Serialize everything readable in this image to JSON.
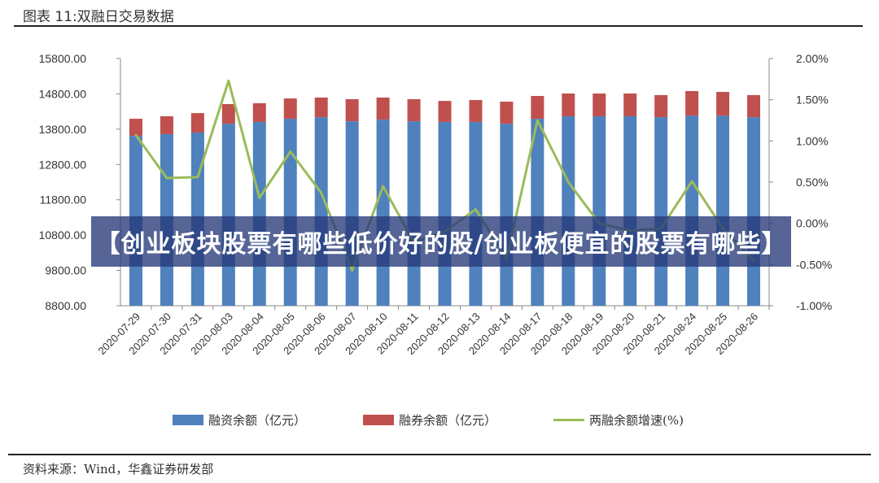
{
  "title": "图表 11:双融日交易数据",
  "source": "资料来源：Wind，华鑫证券研发部",
  "banner": "【创业板块股票有哪些低价好的股/创业板便宜的股票有哪些】",
  "colors": {
    "financing": "#4f81bd",
    "securities": "#c0504d",
    "growth": "#9bbb59"
  },
  "chart_data": {
    "type": "bar",
    "title": "双融日交易数据",
    "categories": [
      "2020-07-29",
      "2020-07-30",
      "2020-07-31",
      "2020-08-03",
      "2020-08-04",
      "2020-08-05",
      "2020-08-06",
      "2020-08-07",
      "2020-08-10",
      "2020-08-11",
      "2020-08-12",
      "2020-08-13",
      "2020-08-14",
      "2020-08-17",
      "2020-08-18",
      "2020-08-19",
      "2020-08-20",
      "2020-08-21",
      "2020-08-24",
      "2020-08-25",
      "2020-08-26"
    ],
    "series": [
      {
        "name": "融资余额（亿元）",
        "type": "stacked-bar",
        "axis": "left",
        "values": [
          13610,
          13660,
          13705,
          13955,
          14005,
          14095,
          14140,
          14025,
          14070,
          14025,
          14005,
          14005,
          13955,
          14095,
          14165,
          14165,
          14165,
          14140,
          14185,
          14185,
          14140
        ]
      },
      {
        "name": "融券余额（亿元）",
        "type": "stacked-bar",
        "axis": "left",
        "note": "stack top (融资+融券)",
        "values": [
          14095,
          14165,
          14255,
          14510,
          14535,
          14670,
          14695,
          14650,
          14695,
          14650,
          14600,
          14625,
          14580,
          14740,
          14810,
          14810,
          14810,
          14765,
          14880,
          14855,
          14765
        ]
      },
      {
        "name": "两融余额增速(%)",
        "type": "line",
        "axis": "right",
        "values": [
          1.07,
          0.55,
          0.56,
          1.73,
          0.31,
          0.87,
          0.37,
          -0.57,
          0.45,
          -0.23,
          -0.1,
          0.17,
          -0.43,
          1.25,
          0.5,
          0.0,
          -0.09,
          -0.06,
          0.51,
          -0.06,
          -0.45
        ]
      }
    ],
    "left_axis": {
      "min": 8800,
      "max": 15800,
      "ticks": [
        "15800.00",
        "14800.00",
        "13800.00",
        "12800.00",
        "11800.00",
        "10800.00",
        "9800.00",
        "8800.00"
      ]
    },
    "right_axis": {
      "min": -1.0,
      "max": 2.0,
      "ticks": [
        "2.00%",
        "1.50%",
        "1.00%",
        "0.50%",
        "0.00%",
        "-0.50%",
        "-1.00%"
      ]
    },
    "grid": false,
    "legend_position": "bottom"
  }
}
